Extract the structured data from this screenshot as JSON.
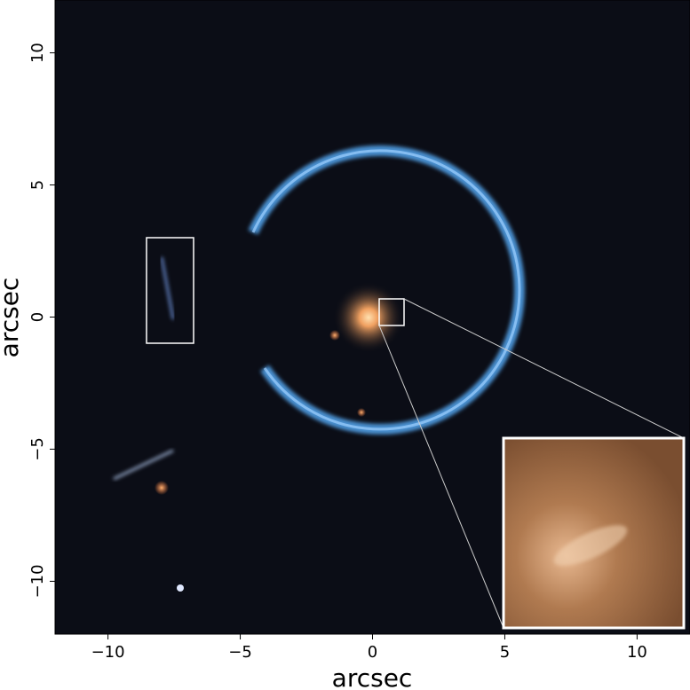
{
  "figure": {
    "xlabel": "arcsec",
    "ylabel": "arcsec",
    "xlim": [
      -12,
      12
    ],
    "ylim": [
      -12,
      12
    ],
    "xticks": [
      "−10",
      "−5",
      "0",
      "5",
      "10"
    ],
    "xtick_values": [
      -10,
      -5,
      0,
      5,
      10
    ],
    "yticks": [
      "−10",
      "−5",
      "0",
      "5",
      "10"
    ],
    "ytick_values": [
      -10,
      -5,
      0,
      5,
      10
    ],
    "highlight_boxes": [
      {
        "label": "lensed-source-image",
        "x": [
          -8.5,
          -6.8
        ],
        "y": [
          -1,
          3
        ]
      },
      {
        "label": "zoom-region",
        "x": [
          0.3,
          1.2
        ],
        "y": [
          -0.3,
          0.7
        ]
      }
    ],
    "inset": {
      "x": [
        5,
        11.8
      ],
      "y": [
        -11.8,
        -4.6
      ]
    },
    "colors": {
      "background": "#0b0d16",
      "ring": "#5fa8e0",
      "lens_galaxy": "#f0a060",
      "box": "#ffffff"
    }
  }
}
